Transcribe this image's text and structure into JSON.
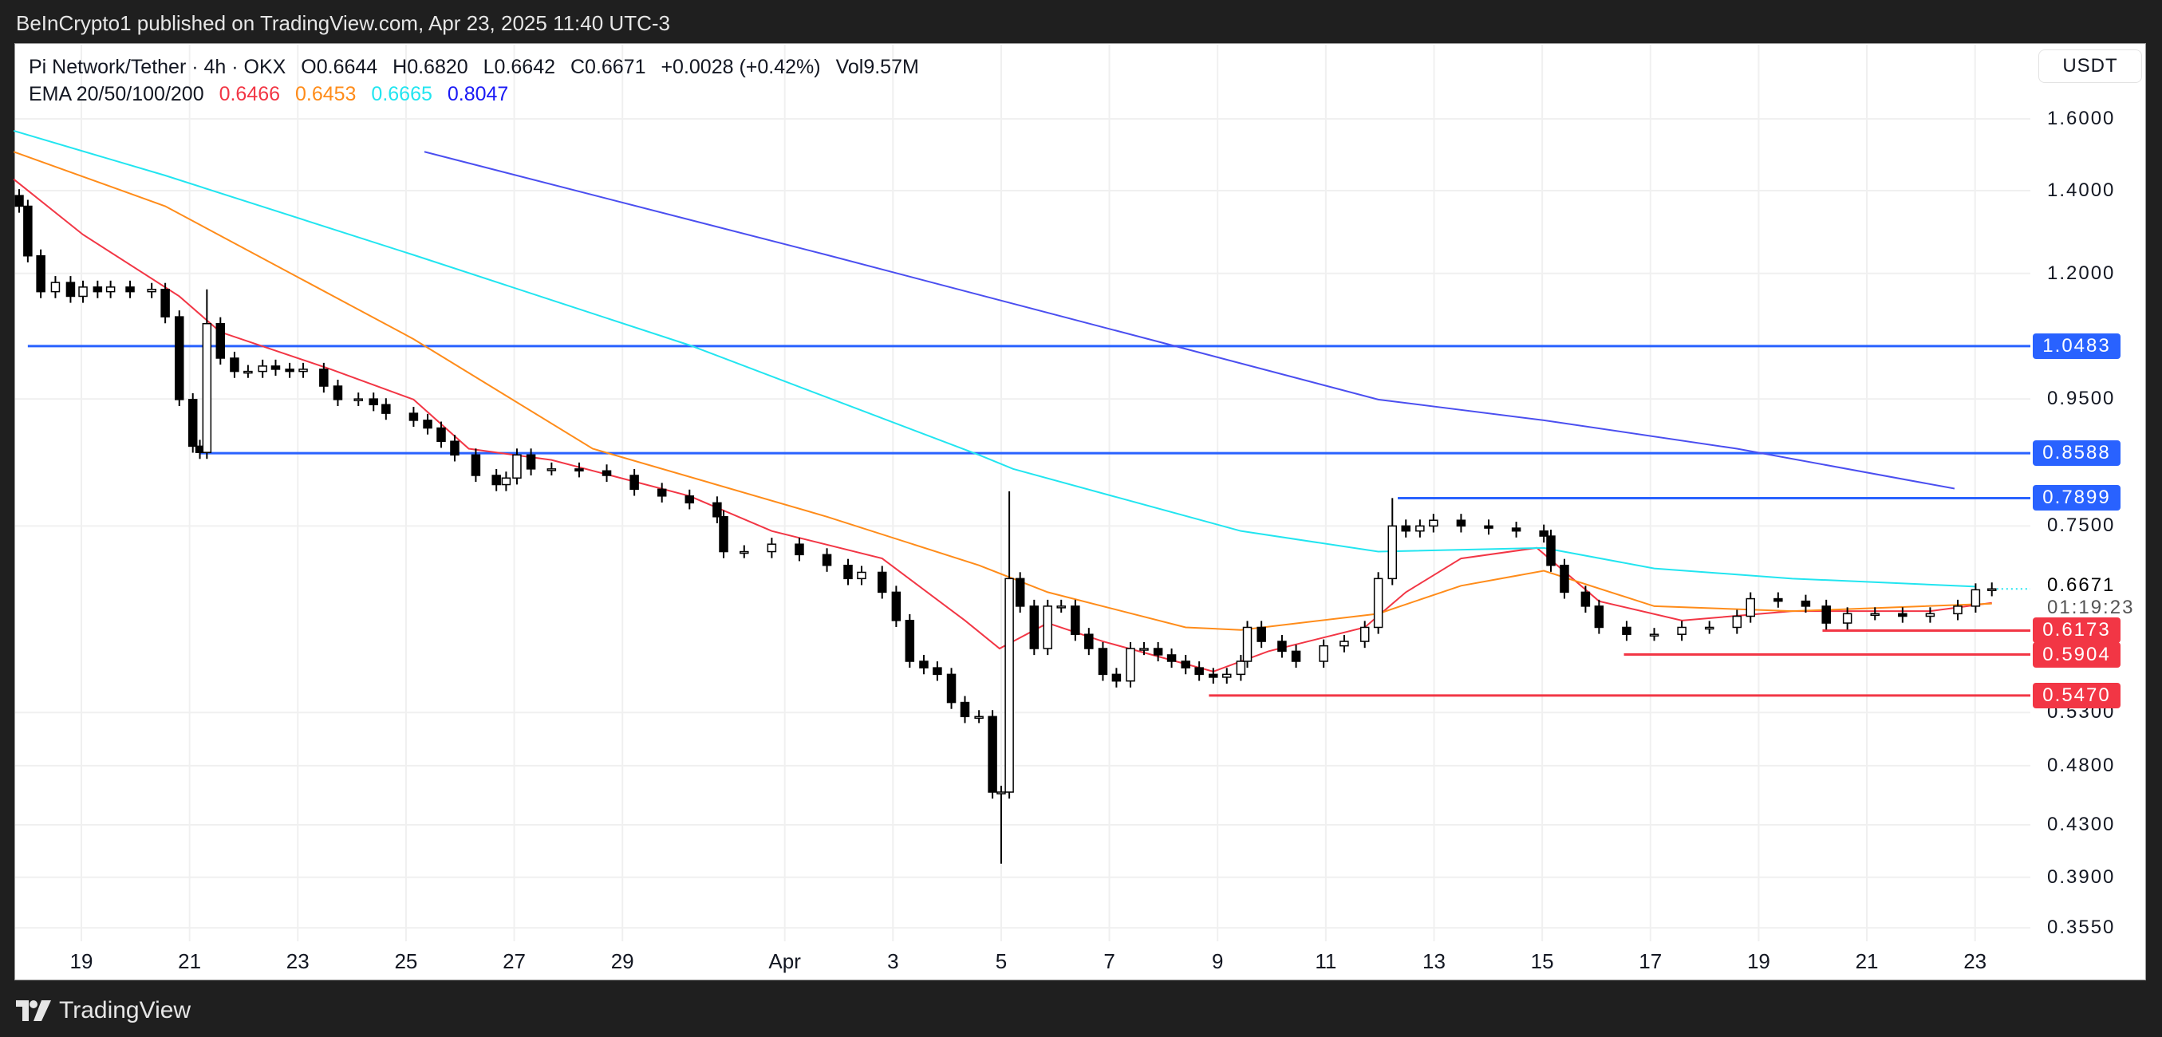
{
  "publish_line": "BeInCrypto1 published on TradingView.com, Apr 23, 2025 11:40 UTC-3",
  "legend": {
    "symbol": "Pi Network/Tether · 4h · OKX",
    "open": "O0.6644",
    "high": "H0.6820",
    "low": "L0.6642",
    "close": "C0.6671",
    "change": "+0.0028 (+0.42%)",
    "volume": "Vol9.57M",
    "ema_label": "EMA 20/50/100/200",
    "ema_values": [
      "0.6466",
      "0.6453",
      "0.6665",
      "0.8047"
    ]
  },
  "currency_button": "USDT",
  "footer_brand": "TradingView",
  "colors": {
    "ema20": "#f23645",
    "ema50": "#ff8c1a",
    "ema100": "#22e5f0",
    "ema200": "#4b4ff0",
    "resistance": "#2962ff",
    "support": "#f23645"
  },
  "chart_data": {
    "type": "candlestick",
    "scale": "log",
    "ylim": [
      0.355,
      1.6
    ],
    "x_unit": "days since Mar 19, 2025",
    "y_ticks": [
      "1.6000",
      "1.4000",
      "1.2000",
      "0.9500",
      "0.7500",
      "0.5300",
      "0.4800",
      "0.4300",
      "0.3900",
      "0.3550"
    ],
    "y_tick_values": [
      1.6,
      1.4,
      1.2,
      0.95,
      0.75,
      0.53,
      0.48,
      0.43,
      0.39,
      0.355
    ],
    "x_ticks": [
      {
        "label": "19",
        "t": 0
      },
      {
        "label": "21",
        "t": 2
      },
      {
        "label": "23",
        "t": 4
      },
      {
        "label": "25",
        "t": 6
      },
      {
        "label": "27",
        "t": 8
      },
      {
        "label": "29",
        "t": 10
      },
      {
        "label": "Apr",
        "t": 13
      },
      {
        "label": "3",
        "t": 15
      },
      {
        "label": "5",
        "t": 17
      },
      {
        "label": "7",
        "t": 19
      },
      {
        "label": "9",
        "t": 21
      },
      {
        "label": "11",
        "t": 23
      },
      {
        "label": "13",
        "t": 25
      },
      {
        "label": "15",
        "t": 27
      },
      {
        "label": "17",
        "t": 29
      },
      {
        "label": "19",
        "t": 31
      },
      {
        "label": "21",
        "t": 33
      },
      {
        "label": "23",
        "t": 35
      }
    ],
    "current_price": {
      "label": "0.6671",
      "countdown": "01:19:23",
      "value": 0.6671
    },
    "levels": [
      {
        "label": "1.0483",
        "value": 1.0483,
        "from_t": -0.99,
        "kind": "resistance"
      },
      {
        "label": "0.8588",
        "value": 0.8588,
        "from_t": 2.19,
        "kind": "resistance"
      },
      {
        "label": "0.7899",
        "value": 0.7899,
        "from_t": 24.33,
        "kind": "resistance"
      },
      {
        "label": "0.6173",
        "value": 0.6173,
        "from_t": 32.18,
        "kind": "support"
      },
      {
        "label": "0.5904",
        "value": 0.5904,
        "from_t": 28.51,
        "kind": "support"
      },
      {
        "label": "0.5470",
        "value": 0.547,
        "from_t": 20.84,
        "kind": "support"
      }
    ],
    "closes": [
      [
        -1.15,
        1.36
      ],
      [
        -0.99,
        1.24
      ],
      [
        -0.75,
        1.16
      ],
      [
        -0.48,
        1.18
      ],
      [
        -0.2,
        1.15
      ],
      [
        0.03,
        1.17
      ],
      [
        0.3,
        1.16
      ],
      [
        0.54,
        1.17
      ],
      [
        0.9,
        1.16
      ],
      [
        1.3,
        1.165
      ],
      [
        1.55,
        1.107
      ],
      [
        1.81,
        0.949
      ],
      [
        2.06,
        0.87
      ],
      [
        2.19,
        0.86
      ],
      [
        2.32,
        1.093
      ],
      [
        2.57,
        1.025
      ],
      [
        2.83,
        1.0
      ],
      [
        3.08,
        1.0
      ],
      [
        3.35,
        1.01
      ],
      [
        3.59,
        1.004
      ],
      [
        3.85,
        1.0
      ],
      [
        4.1,
        1.004
      ],
      [
        4.48,
        0.973
      ],
      [
        4.74,
        0.949
      ],
      [
        5.12,
        0.95
      ],
      [
        5.4,
        0.94
      ],
      [
        5.63,
        0.925
      ],
      [
        6.14,
        0.913
      ],
      [
        6.4,
        0.9
      ],
      [
        6.65,
        0.878
      ],
      [
        6.9,
        0.856
      ],
      [
        7.29,
        0.824
      ],
      [
        7.67,
        0.81
      ],
      [
        7.85,
        0.82
      ],
      [
        8.05,
        0.856
      ],
      [
        8.31,
        0.834
      ],
      [
        8.69,
        0.834
      ],
      [
        9.2,
        0.831
      ],
      [
        9.71,
        0.824
      ],
      [
        10.22,
        0.803
      ],
      [
        10.73,
        0.793
      ],
      [
        11.24,
        0.783
      ],
      [
        11.75,
        0.763
      ],
      [
        11.87,
        0.715
      ],
      [
        12.25,
        0.715
      ],
      [
        12.76,
        0.725
      ],
      [
        13.27,
        0.711
      ],
      [
        13.78,
        0.697
      ],
      [
        14.17,
        0.68
      ],
      [
        14.42,
        0.688
      ],
      [
        14.8,
        0.663
      ],
      [
        15.06,
        0.629
      ],
      [
        15.31,
        0.583
      ],
      [
        15.57,
        0.576
      ],
      [
        15.82,
        0.569
      ],
      [
        16.08,
        0.54
      ],
      [
        16.33,
        0.526
      ],
      [
        16.59,
        0.526
      ],
      [
        16.84,
        0.457
      ],
      [
        17.0,
        0.457
      ],
      [
        17.15,
        0.68
      ],
      [
        17.35,
        0.646
      ],
      [
        17.61,
        0.597
      ],
      [
        17.86,
        0.646
      ],
      [
        18.11,
        0.646
      ],
      [
        18.37,
        0.613
      ],
      [
        18.62,
        0.597
      ],
      [
        18.88,
        0.569
      ],
      [
        19.13,
        0.562
      ],
      [
        19.39,
        0.597
      ],
      [
        19.64,
        0.597
      ],
      [
        19.9,
        0.59
      ],
      [
        20.15,
        0.583
      ],
      [
        20.41,
        0.576
      ],
      [
        20.66,
        0.569
      ],
      [
        20.92,
        0.566
      ],
      [
        21.17,
        0.569
      ],
      [
        21.43,
        0.583
      ],
      [
        21.55,
        0.621
      ],
      [
        21.81,
        0.605
      ],
      [
        22.19,
        0.594
      ],
      [
        22.45,
        0.583
      ],
      [
        22.96,
        0.6
      ],
      [
        23.34,
        0.605
      ],
      [
        23.72,
        0.621
      ],
      [
        23.97,
        0.68
      ],
      [
        24.23,
        0.75
      ],
      [
        24.48,
        0.743
      ],
      [
        24.74,
        0.75
      ],
      [
        24.99,
        0.758
      ],
      [
        25.5,
        0.75
      ],
      [
        26.01,
        0.747
      ],
      [
        26.52,
        0.743
      ],
      [
        27.03,
        0.736
      ],
      [
        27.16,
        0.697
      ],
      [
        27.41,
        0.663
      ],
      [
        27.8,
        0.646
      ],
      [
        28.05,
        0.621
      ],
      [
        28.56,
        0.613
      ],
      [
        29.07,
        0.613
      ],
      [
        29.58,
        0.621
      ],
      [
        30.09,
        0.621
      ],
      [
        30.6,
        0.634
      ],
      [
        30.85,
        0.655
      ],
      [
        31.36,
        0.652
      ],
      [
        31.87,
        0.646
      ],
      [
        32.25,
        0.626
      ],
      [
        32.64,
        0.637
      ],
      [
        33.15,
        0.637
      ],
      [
        33.66,
        0.634
      ],
      [
        34.17,
        0.637
      ],
      [
        34.68,
        0.646
      ],
      [
        35.01,
        0.666
      ],
      [
        35.31,
        0.6671
      ]
    ],
    "wick_overrides": [
      {
        "t": 17.0,
        "low": 0.4
      },
      {
        "t": 17.15,
        "high": 0.8
      },
      {
        "t": 2.32,
        "high": 1.165
      },
      {
        "t": 24.23,
        "high": 0.79
      }
    ],
    "series": [
      {
        "name": "EMA 20",
        "color_key": "ema20",
        "points": [
          [
            -1.25,
            1.43
          ],
          [
            0.03,
            1.29
          ],
          [
            1.81,
            1.15
          ],
          [
            2.57,
            1.076
          ],
          [
            4.61,
            1.004
          ],
          [
            6.14,
            0.949
          ],
          [
            7.16,
            0.866
          ],
          [
            8.69,
            0.848
          ],
          [
            11.24,
            0.793
          ],
          [
            12.76,
            0.743
          ],
          [
            14.8,
            0.706
          ],
          [
            16.33,
            0.629
          ],
          [
            16.97,
            0.597
          ],
          [
            17.86,
            0.626
          ],
          [
            18.88,
            0.605
          ],
          [
            20.92,
            0.572
          ],
          [
            21.94,
            0.594
          ],
          [
            23.72,
            0.621
          ],
          [
            24.48,
            0.663
          ],
          [
            25.5,
            0.706
          ],
          [
            26.9,
            0.72
          ],
          [
            28.05,
            0.652
          ],
          [
            29.58,
            0.629
          ],
          [
            31.62,
            0.64
          ],
          [
            34.17,
            0.64
          ],
          [
            35.31,
            0.65
          ]
        ]
      },
      {
        "name": "EMA 50",
        "color_key": "ema50",
        "points": [
          [
            -1.25,
            1.505
          ],
          [
            1.55,
            1.36
          ],
          [
            6.14,
            1.062
          ],
          [
            9.45,
            0.866
          ],
          [
            13.78,
            0.763
          ],
          [
            16.59,
            0.697
          ],
          [
            17.86,
            0.663
          ],
          [
            20.41,
            0.621
          ],
          [
            21.43,
            0.618
          ],
          [
            23.97,
            0.637
          ],
          [
            25.5,
            0.671
          ],
          [
            27.03,
            0.69
          ],
          [
            29.07,
            0.646
          ],
          [
            31.62,
            0.64
          ],
          [
            35.31,
            0.649
          ]
        ]
      },
      {
        "name": "EMA 100",
        "color_key": "ema100",
        "points": [
          [
            -1.25,
            1.565
          ],
          [
            1.55,
            1.44
          ],
          [
            6.14,
            1.242
          ],
          [
            11.24,
            1.05
          ],
          [
            16.59,
            0.856
          ],
          [
            17.22,
            0.834
          ],
          [
            21.43,
            0.743
          ],
          [
            23.97,
            0.715
          ],
          [
            27.03,
            0.72
          ],
          [
            29.07,
            0.693
          ],
          [
            31.62,
            0.68
          ],
          [
            35.01,
            0.67
          ]
        ]
      },
      {
        "name": "EMA 200",
        "color_key": "ema200",
        "points": [
          [
            6.34,
            1.505
          ],
          [
            13.78,
            1.242
          ],
          [
            19.9,
            1.057
          ],
          [
            23.97,
            0.949
          ],
          [
            27.03,
            0.913
          ],
          [
            30.6,
            0.866
          ],
          [
            34.62,
            0.804
          ]
        ]
      }
    ]
  }
}
